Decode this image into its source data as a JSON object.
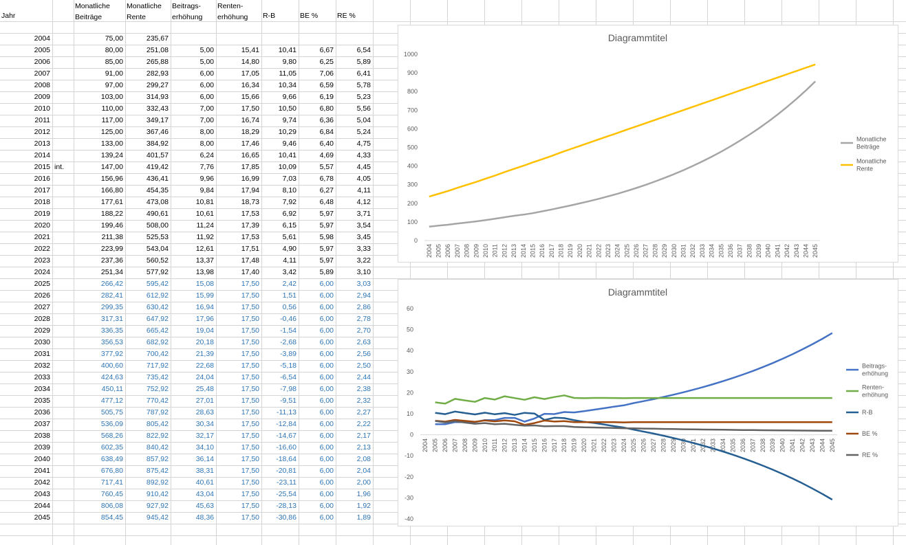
{
  "headers": [
    "Jahr",
    "",
    "Monatliche\nBeiträge",
    "Monatliche\nRente",
    "Beitrags-\nerhöhung",
    "Renten-\nerhöhung",
    "R-B",
    "BE %",
    "RE %"
  ],
  "rows": [
    {
      "year": "2004",
      "note": "",
      "c": "75,00",
      "d": "235,67",
      "e": "",
      "f": "",
      "g": "",
      "h": "",
      "i": ""
    },
    {
      "year": "2005",
      "note": "",
      "c": "80,00",
      "d": "251,08",
      "e": "5,00",
      "f": "15,41",
      "g": "10,41",
      "h": "6,67",
      "i": "6,54"
    },
    {
      "year": "2006",
      "note": "",
      "c": "85,00",
      "d": "265,88",
      "e": "5,00",
      "f": "14,80",
      "g": "9,80",
      "h": "6,25",
      "i": "5,89"
    },
    {
      "year": "2007",
      "note": "",
      "c": "91,00",
      "d": "282,93",
      "e": "6,00",
      "f": "17,05",
      "g": "11,05",
      "h": "7,06",
      "i": "6,41"
    },
    {
      "year": "2008",
      "note": "",
      "c": "97,00",
      "d": "299,27",
      "e": "6,00",
      "f": "16,34",
      "g": "10,34",
      "h": "6,59",
      "i": "5,78"
    },
    {
      "year": "2009",
      "note": "",
      "c": "103,00",
      "d": "314,93",
      "e": "6,00",
      "f": "15,66",
      "g": "9,66",
      "h": "6,19",
      "i": "5,23"
    },
    {
      "year": "2010",
      "note": "",
      "c": "110,00",
      "d": "332,43",
      "e": "7,00",
      "f": "17,50",
      "g": "10,50",
      "h": "6,80",
      "i": "5,56"
    },
    {
      "year": "2011",
      "note": "",
      "c": "117,00",
      "d": "349,17",
      "e": "7,00",
      "f": "16,74",
      "g": "9,74",
      "h": "6,36",
      "i": "5,04"
    },
    {
      "year": "2012",
      "note": "",
      "c": "125,00",
      "d": "367,46",
      "e": "8,00",
      "f": "18,29",
      "g": "10,29",
      "h": "6,84",
      "i": "5,24"
    },
    {
      "year": "2013",
      "note": "",
      "c": "133,00",
      "d": "384,92",
      "e": "8,00",
      "f": "17,46",
      "g": "9,46",
      "h": "6,40",
      "i": "4,75"
    },
    {
      "year": "2014",
      "note": "",
      "c": "139,24",
      "d": "401,57",
      "e": "6,24",
      "f": "16,65",
      "g": "10,41",
      "h": "4,69",
      "i": "4,33"
    },
    {
      "year": "2015",
      "note": "int.",
      "c": "147,00",
      "d": "419,42",
      "e": "7,76",
      "f": "17,85",
      "g": "10,09",
      "h": "5,57",
      "i": "4,45"
    },
    {
      "year": "2016",
      "note": "",
      "c": "156,96",
      "d": "436,41",
      "e": "9,96",
      "f": "16,99",
      "g": "7,03",
      "h": "6,78",
      "i": "4,05"
    },
    {
      "year": "2017",
      "note": "",
      "c": "166,80",
      "d": "454,35",
      "e": "9,84",
      "f": "17,94",
      "g": "8,10",
      "h": "6,27",
      "i": "4,11"
    },
    {
      "year": "2018",
      "note": "",
      "c": "177,61",
      "d": "473,08",
      "e": "10,81",
      "f": "18,73",
      "g": "7,92",
      "h": "6,48",
      "i": "4,12"
    },
    {
      "year": "2019",
      "note": "",
      "c": "188,22",
      "d": "490,61",
      "e": "10,61",
      "f": "17,53",
      "g": "6,92",
      "h": "5,97",
      "i": "3,71"
    },
    {
      "year": "2020",
      "note": "",
      "c": "199,46",
      "d": "508,00",
      "e": "11,24",
      "f": "17,39",
      "g": "6,15",
      "h": "5,97",
      "i": "3,54"
    },
    {
      "year": "2021",
      "note": "",
      "c": "211,38",
      "d": "525,53",
      "e": "11,92",
      "f": "17,53",
      "g": "5,61",
      "h": "5,98",
      "i": "3,45"
    },
    {
      "year": "2022",
      "note": "",
      "c": "223,99",
      "d": "543,04",
      "e": "12,61",
      "f": "17,51",
      "g": "4,90",
      "h": "5,97",
      "i": "3,33"
    },
    {
      "year": "2023",
      "note": "",
      "c": "237,36",
      "d": "560,52",
      "e": "13,37",
      "f": "17,48",
      "g": "4,11",
      "h": "5,97",
      "i": "3,22"
    },
    {
      "year": "2024",
      "note": "",
      "c": "251,34",
      "d": "577,92",
      "e": "13,98",
      "f": "17,40",
      "g": "3,42",
      "h": "5,89",
      "i": "3,10"
    },
    {
      "year": "2025",
      "note": "",
      "c": "266,42",
      "d": "595,42",
      "e": "15,08",
      "f": "17,50",
      "g": "2,42",
      "h": "6,00",
      "i": "3,03",
      "proj": true
    },
    {
      "year": "2026",
      "note": "",
      "c": "282,41",
      "d": "612,92",
      "e": "15,99",
      "f": "17,50",
      "g": "1,51",
      "h": "6,00",
      "i": "2,94",
      "proj": true
    },
    {
      "year": "2027",
      "note": "",
      "c": "299,35",
      "d": "630,42",
      "e": "16,94",
      "f": "17,50",
      "g": "0,56",
      "h": "6,00",
      "i": "2,86",
      "proj": true
    },
    {
      "year": "2028",
      "note": "",
      "c": "317,31",
      "d": "647,92",
      "e": "17,96",
      "f": "17,50",
      "g": "-0,46",
      "h": "6,00",
      "i": "2,78",
      "proj": true
    },
    {
      "year": "2029",
      "note": "",
      "c": "336,35",
      "d": "665,42",
      "e": "19,04",
      "f": "17,50",
      "g": "-1,54",
      "h": "6,00",
      "i": "2,70",
      "proj": true
    },
    {
      "year": "2030",
      "note": "",
      "c": "356,53",
      "d": "682,92",
      "e": "20,18",
      "f": "17,50",
      "g": "-2,68",
      "h": "6,00",
      "i": "2,63",
      "proj": true
    },
    {
      "year": "2031",
      "note": "",
      "c": "377,92",
      "d": "700,42",
      "e": "21,39",
      "f": "17,50",
      "g": "-3,89",
      "h": "6,00",
      "i": "2,56",
      "proj": true
    },
    {
      "year": "2032",
      "note": "",
      "c": "400,60",
      "d": "717,92",
      "e": "22,68",
      "f": "17,50",
      "g": "-5,18",
      "h": "6,00",
      "i": "2,50",
      "proj": true
    },
    {
      "year": "2033",
      "note": "",
      "c": "424,63",
      "d": "735,42",
      "e": "24,04",
      "f": "17,50",
      "g": "-6,54",
      "h": "6,00",
      "i": "2,44",
      "proj": true
    },
    {
      "year": "2034",
      "note": "",
      "c": "450,11",
      "d": "752,92",
      "e": "25,48",
      "f": "17,50",
      "g": "-7,98",
      "h": "6,00",
      "i": "2,38",
      "proj": true
    },
    {
      "year": "2035",
      "note": "",
      "c": "477,12",
      "d": "770,42",
      "e": "27,01",
      "f": "17,50",
      "g": "-9,51",
      "h": "6,00",
      "i": "2,32",
      "proj": true
    },
    {
      "year": "2036",
      "note": "",
      "c": "505,75",
      "d": "787,92",
      "e": "28,63",
      "f": "17,50",
      "g": "-11,13",
      "h": "6,00",
      "i": "2,27",
      "proj": true
    },
    {
      "year": "2037",
      "note": "",
      "c": "536,09",
      "d": "805,42",
      "e": "30,34",
      "f": "17,50",
      "g": "-12,84",
      "h": "6,00",
      "i": "2,22",
      "proj": true
    },
    {
      "year": "2038",
      "note": "",
      "c": "568,26",
      "d": "822,92",
      "e": "32,17",
      "f": "17,50",
      "g": "-14,67",
      "h": "6,00",
      "i": "2,17",
      "proj": true
    },
    {
      "year": "2039",
      "note": "",
      "c": "602,35",
      "d": "840,42",
      "e": "34,10",
      "f": "17,50",
      "g": "-16,60",
      "h": "6,00",
      "i": "2,13",
      "proj": true
    },
    {
      "year": "2040",
      "note": "",
      "c": "638,49",
      "d": "857,92",
      "e": "36,14",
      "f": "17,50",
      "g": "-18,64",
      "h": "6,00",
      "i": "2,08",
      "proj": true
    },
    {
      "year": "2041",
      "note": "",
      "c": "676,80",
      "d": "875,42",
      "e": "38,31",
      "f": "17,50",
      "g": "-20,81",
      "h": "6,00",
      "i": "2,04",
      "proj": true
    },
    {
      "year": "2042",
      "note": "",
      "c": "717,41",
      "d": "892,92",
      "e": "40,61",
      "f": "17,50",
      "g": "-23,11",
      "h": "6,00",
      "i": "2,00",
      "proj": true
    },
    {
      "year": "2043",
      "note": "",
      "c": "760,45",
      "d": "910,42",
      "e": "43,04",
      "f": "17,50",
      "g": "-25,54",
      "h": "6,00",
      "i": "1,96",
      "proj": true
    },
    {
      "year": "2044",
      "note": "",
      "c": "806,08",
      "d": "927,92",
      "e": "45,63",
      "f": "17,50",
      "g": "-28,13",
      "h": "6,00",
      "i": "1,92",
      "proj": true
    },
    {
      "year": "2045",
      "note": "",
      "c": "854,45",
      "d": "945,42",
      "e": "48,36",
      "f": "17,50",
      "g": "-30,86",
      "h": "6,00",
      "i": "1,89",
      "proj": true
    }
  ],
  "chart_data": [
    {
      "type": "line",
      "title": "Diagrammtitel",
      "ylim": [
        0,
        1000
      ],
      "yticks": [
        "0",
        "100",
        "200",
        "300",
        "400",
        "500",
        "600",
        "700",
        "800",
        "900",
        "1000"
      ],
      "x": [
        "2004",
        "2005",
        "2006",
        "2007",
        "2008",
        "2009",
        "2010",
        "2011",
        "2012",
        "2013",
        "2014",
        "2015",
        "2016",
        "2017",
        "2018",
        "2019",
        "2020",
        "2021",
        "2022",
        "2023",
        "2024",
        "2025",
        "2026",
        "2027",
        "2028",
        "2029",
        "2030",
        "2031",
        "2032",
        "2033",
        "2034",
        "2035",
        "2036",
        "2037",
        "2038",
        "2039",
        "2040",
        "2041",
        "2042",
        "2043",
        "2044",
        "2045"
      ],
      "legend": "right",
      "series": [
        {
          "name": "Monatliche\nBeiträge",
          "color": "#a5a5a5",
          "values": [
            75.0,
            80.0,
            85.0,
            91.0,
            97.0,
            103.0,
            110.0,
            117.0,
            125.0,
            133.0,
            139.24,
            147.0,
            156.96,
            166.8,
            177.61,
            188.22,
            199.46,
            211.38,
            223.99,
            237.36,
            251.34,
            266.42,
            282.41,
            299.35,
            317.31,
            336.35,
            356.53,
            377.92,
            400.6,
            424.63,
            450.11,
            477.12,
            505.75,
            536.09,
            568.26,
            602.35,
            638.49,
            676.8,
            717.41,
            760.45,
            806.08,
            854.45
          ]
        },
        {
          "name": "Monatliche\nRente",
          "color": "#ffc000",
          "values": [
            235.67,
            251.08,
            265.88,
            282.93,
            299.27,
            314.93,
            332.43,
            349.17,
            367.46,
            384.92,
            401.57,
            419.42,
            436.41,
            454.35,
            473.08,
            490.61,
            508.0,
            525.53,
            543.04,
            560.52,
            577.92,
            595.42,
            612.92,
            630.42,
            647.92,
            665.42,
            682.92,
            700.42,
            717.92,
            735.42,
            752.92,
            770.42,
            787.92,
            805.42,
            822.92,
            840.42,
            857.92,
            875.42,
            892.92,
            910.42,
            927.92,
            945.42
          ]
        }
      ]
    },
    {
      "type": "line",
      "title": "Diagrammtitel",
      "ylim": [
        -40,
        60
      ],
      "yticks": [
        "-40",
        "-30",
        "-20",
        "-10",
        "0",
        "10",
        "20",
        "30",
        "40",
        "50",
        "60"
      ],
      "x": [
        "2004",
        "2005",
        "2006",
        "2007",
        "2008",
        "2009",
        "2010",
        "2011",
        "2012",
        "2013",
        "2014",
        "2015",
        "2016",
        "2017",
        "2018",
        "2019",
        "2020",
        "2021",
        "2022",
        "2023",
        "2024",
        "2025",
        "2026",
        "2027",
        "2028",
        "2029",
        "2030",
        "2031",
        "2032",
        "2033",
        "2034",
        "2035",
        "2036",
        "2037",
        "2038",
        "2039",
        "2040",
        "2041",
        "2042",
        "2043",
        "2044",
        "2045"
      ],
      "legend": "right",
      "series": [
        {
          "name": "Beitrags-\nerhöhung",
          "color": "#4472c4",
          "values": [
            null,
            5.0,
            5.0,
            6.0,
            6.0,
            6.0,
            7.0,
            7.0,
            8.0,
            8.0,
            6.24,
            7.76,
            9.96,
            9.84,
            10.81,
            10.61,
            11.24,
            11.92,
            12.61,
            13.37,
            13.98,
            15.08,
            15.99,
            16.94,
            17.96,
            19.04,
            20.18,
            21.39,
            22.68,
            24.04,
            25.48,
            27.01,
            28.63,
            30.34,
            32.17,
            34.1,
            36.14,
            38.31,
            40.61,
            43.04,
            45.63,
            48.36
          ]
        },
        {
          "name": "Renten-\nerhöhung",
          "color": "#70ad47",
          "values": [
            null,
            15.41,
            14.8,
            17.05,
            16.34,
            15.66,
            17.5,
            16.74,
            18.29,
            17.46,
            16.65,
            17.85,
            16.99,
            17.94,
            18.73,
            17.53,
            17.39,
            17.53,
            17.51,
            17.48,
            17.4,
            17.5,
            17.5,
            17.5,
            17.5,
            17.5,
            17.5,
            17.5,
            17.5,
            17.5,
            17.5,
            17.5,
            17.5,
            17.5,
            17.5,
            17.5,
            17.5,
            17.5,
            17.5,
            17.5,
            17.5,
            17.5
          ]
        },
        {
          "name": "R-B",
          "color": "#255e91",
          "values": [
            null,
            10.41,
            9.8,
            11.05,
            10.34,
            9.66,
            10.5,
            9.74,
            10.29,
            9.46,
            10.41,
            10.09,
            7.03,
            8.1,
            7.92,
            6.92,
            6.15,
            5.61,
            4.9,
            4.11,
            3.42,
            2.42,
            1.51,
            0.56,
            -0.46,
            -1.54,
            -2.68,
            -3.89,
            -5.18,
            -6.54,
            -7.98,
            -9.51,
            -11.13,
            -12.84,
            -14.67,
            -16.6,
            -18.64,
            -20.81,
            -23.11,
            -25.54,
            -28.13,
            -30.86
          ]
        },
        {
          "name": "BE %",
          "color": "#9e480e",
          "values": [
            null,
            6.67,
            6.25,
            7.06,
            6.59,
            6.19,
            6.8,
            6.36,
            6.84,
            6.4,
            4.69,
            5.57,
            6.78,
            6.27,
            6.48,
            5.97,
            5.97,
            5.98,
            5.97,
            5.97,
            5.89,
            6.0,
            6.0,
            6.0,
            6.0,
            6.0,
            6.0,
            6.0,
            6.0,
            6.0,
            6.0,
            6.0,
            6.0,
            6.0,
            6.0,
            6.0,
            6.0,
            6.0,
            6.0,
            6.0,
            6.0,
            6.0
          ]
        },
        {
          "name": "RE %",
          "color": "#636363",
          "values": [
            null,
            6.54,
            5.89,
            6.41,
            5.78,
            5.23,
            5.56,
            5.04,
            5.24,
            4.75,
            4.33,
            4.45,
            4.05,
            4.11,
            4.12,
            3.71,
            3.54,
            3.45,
            3.33,
            3.22,
            3.1,
            3.03,
            2.94,
            2.86,
            2.78,
            2.7,
            2.63,
            2.56,
            2.5,
            2.44,
            2.38,
            2.32,
            2.27,
            2.22,
            2.17,
            2.13,
            2.08,
            2.04,
            2.0,
            1.96,
            1.92,
            1.89
          ]
        }
      ]
    }
  ]
}
